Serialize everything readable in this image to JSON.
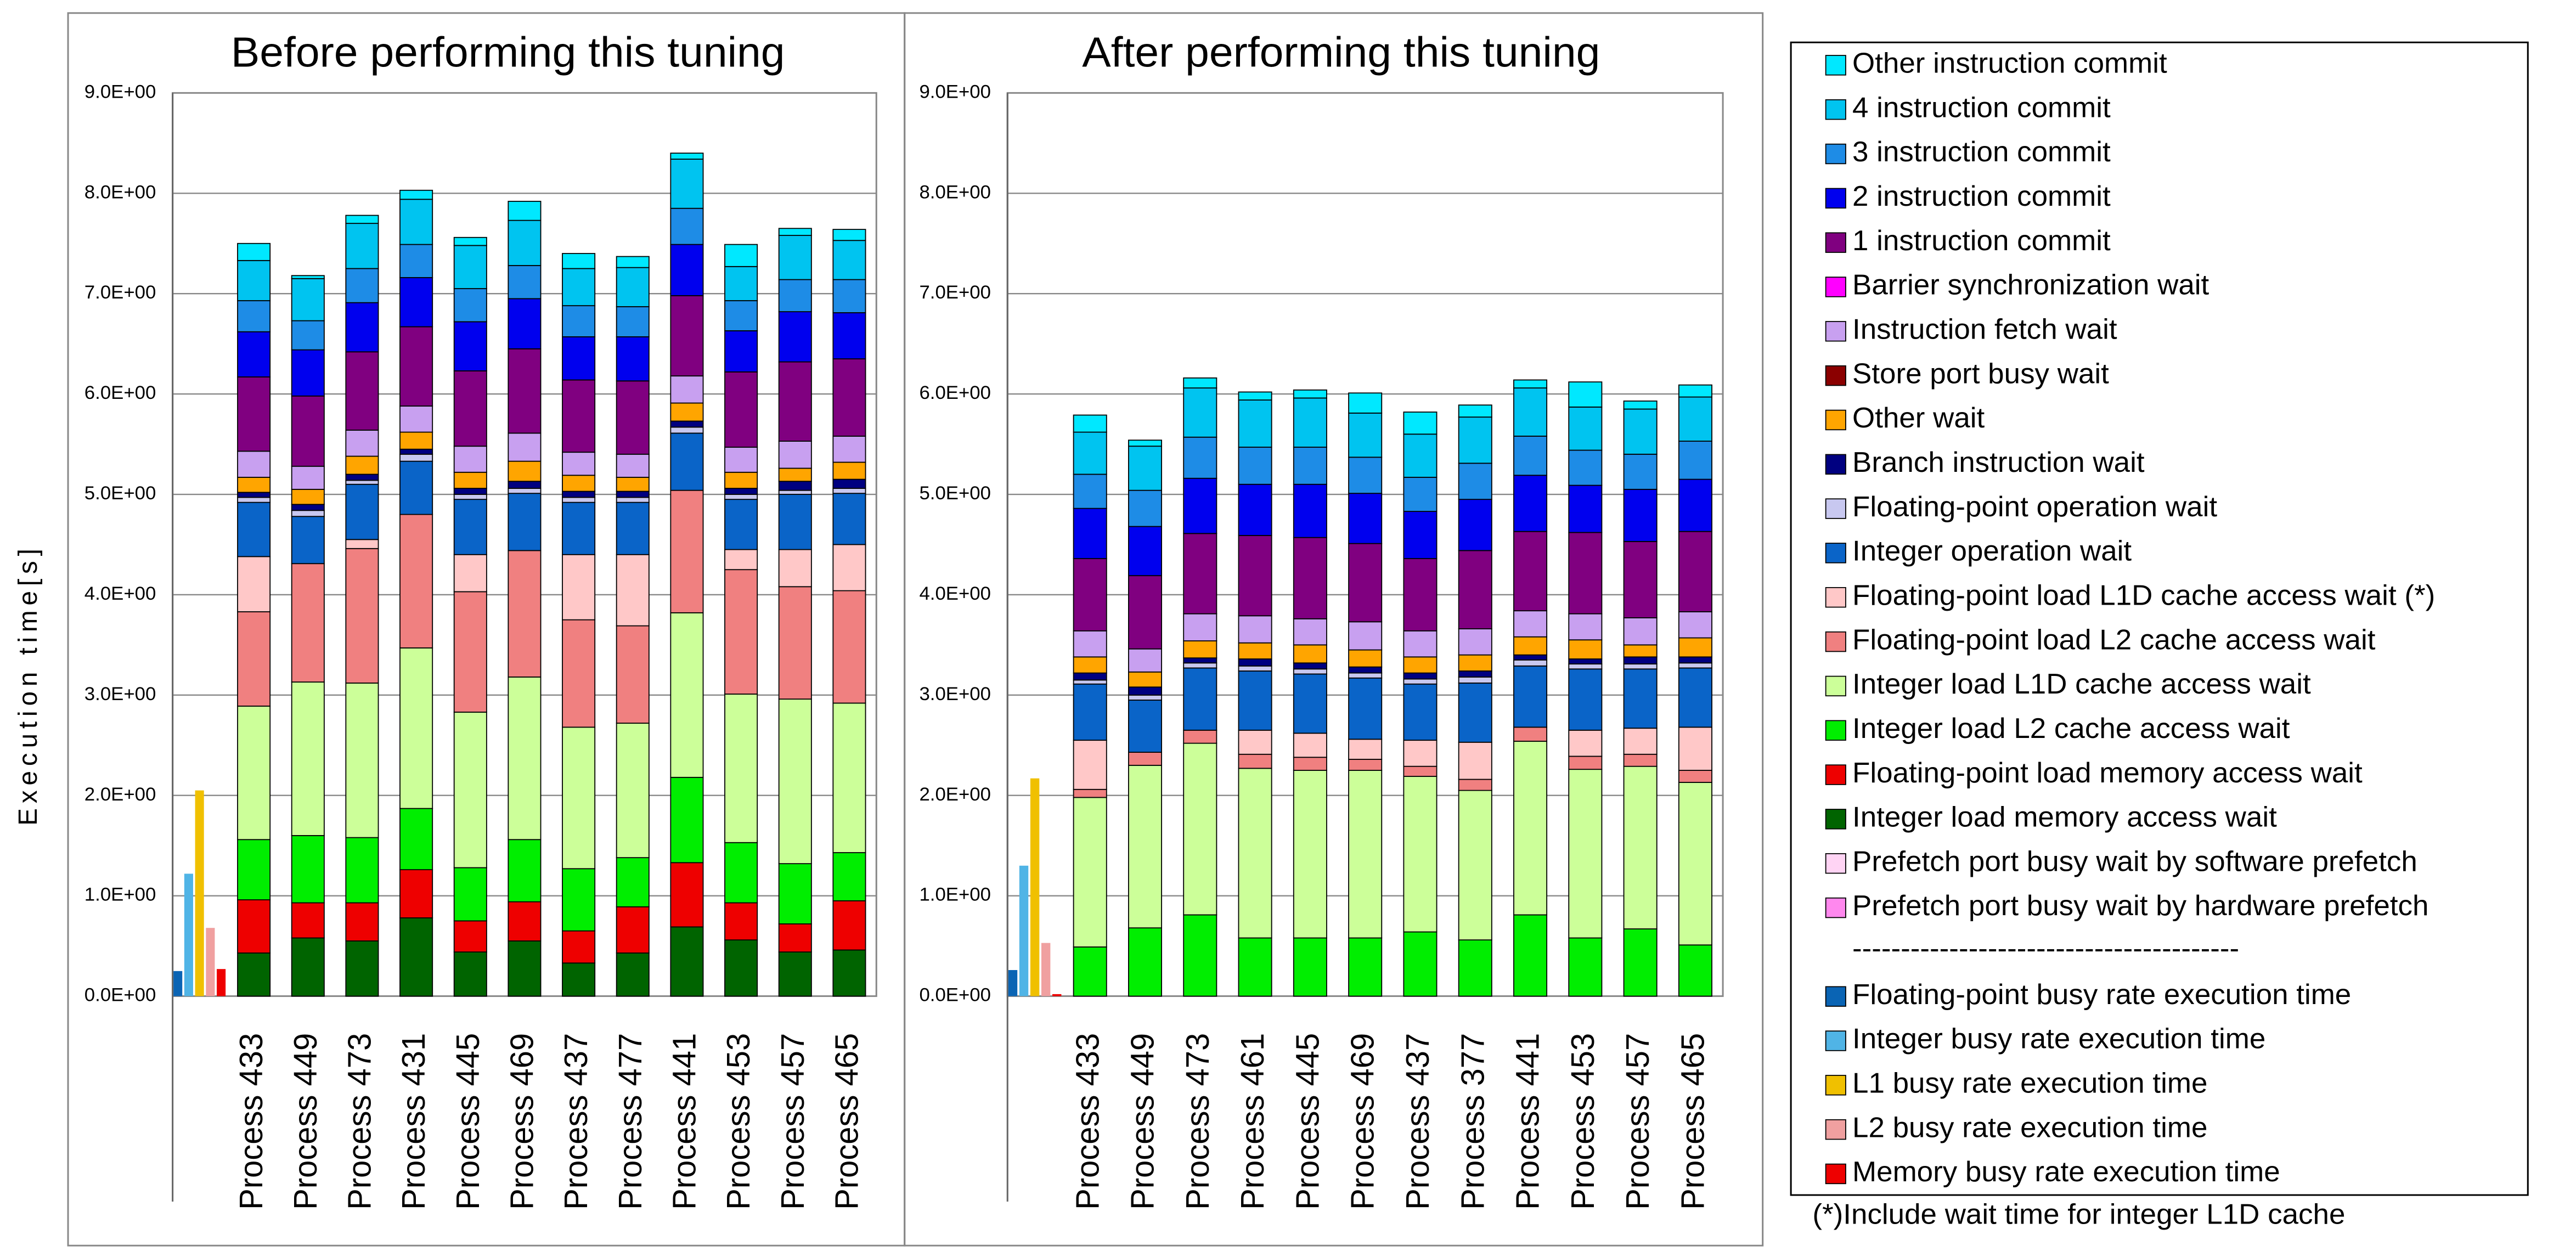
{
  "chart_data": [
    {
      "type": "bar",
      "stacked": true,
      "title": "Before performing this tuning",
      "y_label": "Execution time[s]",
      "categories": [
        null,
        "Process 433",
        "Process 449",
        "Process 473",
        "Process 431",
        "Process 445",
        "Process 469",
        "Process 437",
        "Process 477",
        "Process 441",
        "Process 453",
        "Process 457",
        "Process 465"
      ],
      "ylim": [
        0,
        9
      ],
      "grid": true,
      "yticks": [
        {
          "value": 0,
          "label": "0.0E+00"
        },
        {
          "value": 1,
          "label": "1.0E+00"
        },
        {
          "value": 2,
          "label": "2.0E+00"
        },
        {
          "value": 3,
          "label": "3.0E+00"
        },
        {
          "value": 4,
          "label": "4.0E+00"
        },
        {
          "value": 5,
          "label": "5.0E+00"
        },
        {
          "value": 6,
          "label": "6.0E+00"
        },
        {
          "value": 7,
          "label": "7.0E+00"
        },
        {
          "value": 8,
          "label": "8.0E+00"
        },
        {
          "value": 9,
          "label": "9.0E+00"
        }
      ],
      "series": [
        {
          "name": "Other instruction commit",
          "color": "#00e8ff",
          "values": [
            null,
            0.17,
            0.03,
            0.08,
            0.09,
            0.08,
            0.19,
            0.15,
            0.11,
            0.06,
            0.22,
            0.07,
            0.11
          ]
        },
        {
          "name": "4 instruction commit",
          "color": "#00c4f0",
          "values": [
            null,
            0.4,
            0.42,
            0.45,
            0.45,
            0.43,
            0.45,
            0.37,
            0.39,
            0.49,
            0.34,
            0.44,
            0.39
          ]
        },
        {
          "name": "3 instruction commit",
          "color": "#1e8ce6",
          "values": [
            null,
            0.31,
            0.29,
            0.34,
            0.33,
            0.33,
            0.33,
            0.31,
            0.3,
            0.36,
            0.3,
            0.32,
            0.33
          ]
        },
        {
          "name": "2 instruction commit",
          "color": "#0000ee",
          "values": [
            null,
            0.45,
            0.46,
            0.49,
            0.49,
            0.49,
            0.5,
            0.43,
            0.44,
            0.51,
            0.41,
            0.5,
            0.46
          ]
        },
        {
          "name": "1 instruction commit",
          "color": "#800080",
          "values": [
            null,
            0.74,
            0.7,
            0.78,
            0.79,
            0.75,
            0.84,
            0.72,
            0.73,
            0.8,
            0.75,
            0.79,
            0.77
          ]
        },
        {
          "name": "Barrier synchronization wait",
          "color": "#ff00ff",
          "values": [
            null,
            0,
            0,
            0,
            0,
            0,
            0,
            0,
            0,
            0,
            0,
            0,
            0
          ]
        },
        {
          "name": "Instruction fetch wait",
          "color": "#c8a0f0",
          "values": [
            null,
            0.26,
            0.23,
            0.26,
            0.26,
            0.26,
            0.28,
            0.23,
            0.23,
            0.27,
            0.25,
            0.27,
            0.26
          ]
        },
        {
          "name": "Store port busy wait",
          "color": "#8b0000",
          "values": [
            null,
            0,
            0,
            0,
            0,
            0,
            0,
            0,
            0,
            0,
            0,
            0,
            0
          ]
        },
        {
          "name": "Other wait",
          "color": "#ffa500",
          "values": [
            null,
            0.15,
            0.15,
            0.18,
            0.17,
            0.16,
            0.2,
            0.16,
            0.14,
            0.18,
            0.16,
            0.13,
            0.17
          ]
        },
        {
          "name": "Branch instruction wait",
          "color": "#000080",
          "values": [
            null,
            0.05,
            0.06,
            0.06,
            0.05,
            0.06,
            0.07,
            0.06,
            0.06,
            0.06,
            0.06,
            0.09,
            0.09
          ]
        },
        {
          "name": "Floating-point operation wait",
          "color": "#c8c8f0",
          "values": [
            null,
            0.05,
            0.06,
            0.04,
            0.07,
            0.05,
            0.05,
            0.05,
            0.05,
            0.06,
            0.05,
            0.04,
            0.05
          ]
        },
        {
          "name": "Integer operation wait",
          "color": "#0a64c8",
          "values": [
            null,
            0.54,
            0.47,
            0.55,
            0.53,
            0.55,
            0.57,
            0.52,
            0.52,
            0.57,
            0.5,
            0.55,
            0.51
          ]
        },
        {
          "name": "Floating-point load L1D cache access wait (*)",
          "color": "#ffc8c8",
          "values": [
            null,
            0.55,
            0,
            0.09,
            0,
            0.37,
            0,
            0.65,
            0.71,
            0,
            0.2,
            0.37,
            0.46
          ]
        },
        {
          "name": "Floating-point load L2 cache access wait",
          "color": "#f08080",
          "values": [
            null,
            0.94,
            1.18,
            1.34,
            1.33,
            1.2,
            1.26,
            1.07,
            0.97,
            1.22,
            1.24,
            1.12,
            1.12
          ]
        },
        {
          "name": "Integer load L1D cache access wait",
          "color": "#ccff99",
          "values": [
            null,
            1.33,
            1.53,
            1.54,
            1.6,
            1.55,
            1.62,
            1.41,
            1.34,
            1.64,
            1.48,
            1.64,
            1.49
          ]
        },
        {
          "name": "Integer load L2 cache access wait",
          "color": "#00ee00",
          "values": [
            null,
            0.6,
            0.67,
            0.65,
            0.61,
            0.53,
            0.62,
            0.62,
            0.49,
            0.85,
            0.6,
            0.6,
            0.48
          ]
        },
        {
          "name": "Floating-point load memory access wait",
          "color": "#ee0000",
          "values": [
            null,
            0.53,
            0.35,
            0.38,
            0.48,
            0.31,
            0.39,
            0.32,
            0.46,
            0.64,
            0.37,
            0.28,
            0.49
          ]
        },
        {
          "name": "Integer load memory access wait",
          "color": "#006400",
          "values": [
            null,
            0.43,
            0.58,
            0.55,
            0.78,
            0.44,
            0.55,
            0.33,
            0.43,
            0.69,
            0.56,
            0.44,
            0.46
          ]
        },
        {
          "name": "Prefetch port busy wait by software prefetch",
          "color": "#ffd4f4",
          "values": [
            null,
            0,
            0,
            0,
            0,
            0,
            0,
            0,
            0,
            0,
            0,
            0,
            0
          ]
        },
        {
          "name": "Prefetch port busy wait by hardware prefetch",
          "color": "#ff88ee",
          "values": [
            null,
            0,
            0,
            0,
            0,
            0,
            0,
            0,
            0,
            0,
            0,
            0,
            0
          ]
        },
        {
          "name": "Floating-point busy rate execution time",
          "color": "#0a64b4",
          "stacked": false,
          "values": [
            0.25,
            null,
            null,
            null,
            null,
            null,
            null,
            null,
            null,
            null,
            null,
            null,
            null
          ]
        },
        {
          "name": "Integer busy rate execution time",
          "color": "#50b4e6",
          "stacked": false,
          "values": [
            1.22,
            null,
            null,
            null,
            null,
            null,
            null,
            null,
            null,
            null,
            null,
            null,
            null
          ]
        },
        {
          "name": "L1 busy rate execution time",
          "color": "#f0c000",
          "stacked": false,
          "values": [
            2.05,
            null,
            null,
            null,
            null,
            null,
            null,
            null,
            null,
            null,
            null,
            null,
            null
          ]
        },
        {
          "name": "L2 busy rate execution time",
          "color": "#f0a0a0",
          "stacked": false,
          "values": [
            0.68,
            null,
            null,
            null,
            null,
            null,
            null,
            null,
            null,
            null,
            null,
            null,
            null
          ]
        },
        {
          "name": "Memory busy rate execution time",
          "color": "#ee0000",
          "stacked": false,
          "values": [
            0.27,
            null,
            null,
            null,
            null,
            null,
            null,
            null,
            null,
            null,
            null,
            null,
            null
          ]
        }
      ]
    },
    {
      "type": "bar",
      "stacked": true,
      "title": "After performing this tuning",
      "categories": [
        null,
        "Process 433",
        "Process 449",
        "Process 473",
        "Process 461",
        "Process 445",
        "Process 469",
        "Process 437",
        "Process 377",
        "Process 441",
        "Process 453",
        "Process 457",
        "Process 465"
      ],
      "ylim": [
        0,
        9
      ],
      "grid": true,
      "yticks": [
        {
          "value": 0,
          "label": "0.0E+00"
        },
        {
          "value": 1,
          "label": "1.0E+00"
        },
        {
          "value": 2,
          "label": "2.0E+00"
        },
        {
          "value": 3,
          "label": "3.0E+00"
        },
        {
          "value": 4,
          "label": "4.0E+00"
        },
        {
          "value": 5,
          "label": "5.0E+00"
        },
        {
          "value": 6,
          "label": "6.0E+00"
        },
        {
          "value": 7,
          "label": "7.0E+00"
        },
        {
          "value": 8,
          "label": "8.0E+00"
        },
        {
          "value": 9,
          "label": "9.0E+00"
        }
      ],
      "series": [
        {
          "values": [
            null,
            0.17,
            0.06,
            0.1,
            0.08,
            0.08,
            0.2,
            0.22,
            0.12,
            0.08,
            0.25,
            0.08,
            0.12
          ]
        },
        {
          "values": [
            null,
            0.42,
            0.44,
            0.49,
            0.47,
            0.49,
            0.44,
            0.43,
            0.46,
            0.48,
            0.43,
            0.45,
            0.44
          ]
        },
        {
          "values": [
            null,
            0.34,
            0.36,
            0.41,
            0.37,
            0.37,
            0.36,
            0.34,
            0.36,
            0.39,
            0.35,
            0.35,
            0.38
          ]
        },
        {
          "values": [
            null,
            0.5,
            0.49,
            0.55,
            0.51,
            0.53,
            0.5,
            0.47,
            0.51,
            0.56,
            0.47,
            0.52,
            0.52
          ]
        },
        {
          "values": [
            null,
            0.72,
            0.73,
            0.8,
            0.8,
            0.81,
            0.78,
            0.72,
            0.78,
            0.79,
            0.81,
            0.76,
            0.8
          ]
        },
        {
          "values": [
            null,
            0,
            0,
            0,
            0,
            0,
            0,
            0,
            0,
            0,
            0,
            0,
            0
          ]
        },
        {
          "values": [
            null,
            0.26,
            0.23,
            0.27,
            0.27,
            0.26,
            0.28,
            0.26,
            0.26,
            0.26,
            0.26,
            0.27,
            0.26
          ]
        },
        {
          "values": [
            null,
            0,
            0,
            0,
            0,
            0,
            0,
            0,
            0,
            0,
            0,
            0,
            0
          ]
        },
        {
          "values": [
            null,
            0.16,
            0.15,
            0.17,
            0.16,
            0.18,
            0.17,
            0.16,
            0.16,
            0.18,
            0.19,
            0.12,
            0.19
          ]
        },
        {
          "values": [
            null,
            0.07,
            0.08,
            0.05,
            0.07,
            0.06,
            0.06,
            0.06,
            0.06,
            0.05,
            0.05,
            0.07,
            0.06
          ]
        },
        {
          "values": [
            null,
            0.04,
            0.05,
            0.05,
            0.05,
            0.05,
            0.05,
            0.05,
            0.06,
            0.06,
            0.05,
            0.05,
            0.05
          ]
        },
        {
          "values": [
            null,
            0.56,
            0.52,
            0.62,
            0.59,
            0.59,
            0.61,
            0.56,
            0.59,
            0.61,
            0.61,
            0.59,
            0.59
          ]
        },
        {
          "values": [
            null,
            0.49,
            0,
            0,
            0.24,
            0.24,
            0.2,
            0.26,
            0.37,
            0,
            0.26,
            0.26,
            0.43
          ]
        },
        {
          "values": [
            null,
            0.08,
            0.13,
            0.13,
            0.14,
            0.13,
            0.11,
            0.1,
            0.11,
            0.14,
            0.13,
            0.12,
            0.12
          ]
        },
        {
          "values": [
            null,
            1.49,
            1.62,
            1.71,
            1.69,
            1.67,
            1.67,
            1.55,
            1.49,
            1.73,
            1.68,
            1.62,
            1.62
          ]
        },
        {
          "values": [
            null,
            0.49,
            0.68,
            0.81,
            0.58,
            0.58,
            0.58,
            0.64,
            0.56,
            0.81,
            0.58,
            0.67,
            0.51
          ]
        },
        {
          "values": [
            null,
            0,
            0,
            0,
            0,
            0,
            0,
            0,
            0,
            0,
            0,
            0,
            0
          ]
        },
        {
          "values": [
            null,
            0,
            0,
            0,
            0,
            0,
            0,
            0,
            0,
            0,
            0,
            0,
            0
          ]
        },
        {
          "values": [
            null,
            0,
            0,
            0,
            0,
            0,
            0,
            0,
            0,
            0,
            0,
            0,
            0
          ]
        },
        {
          "values": [
            null,
            0,
            0,
            0,
            0,
            0,
            0,
            0,
            0,
            0,
            0,
            0,
            0
          ]
        },
        {
          "stacked": false,
          "values": [
            0.26,
            null,
            null,
            null,
            null,
            null,
            null,
            null,
            null,
            null,
            null,
            null,
            null
          ]
        },
        {
          "stacked": false,
          "values": [
            1.3,
            null,
            null,
            null,
            null,
            null,
            null,
            null,
            null,
            null,
            null,
            null,
            null
          ]
        },
        {
          "stacked": false,
          "values": [
            2.17,
            null,
            null,
            null,
            null,
            null,
            null,
            null,
            null,
            null,
            null,
            null,
            null
          ]
        },
        {
          "stacked": false,
          "values": [
            0.53,
            null,
            null,
            null,
            null,
            null,
            null,
            null,
            null,
            null,
            null,
            null,
            null
          ]
        },
        {
          "stacked": false,
          "values": [
            0.02,
            null,
            null,
            null,
            null,
            null,
            null,
            null,
            null,
            null,
            null,
            null,
            null
          ]
        }
      ]
    }
  ],
  "legend": {
    "separator": "----------------------------------------",
    "footnote": "(*)Include wait time for integer L1D cache"
  }
}
